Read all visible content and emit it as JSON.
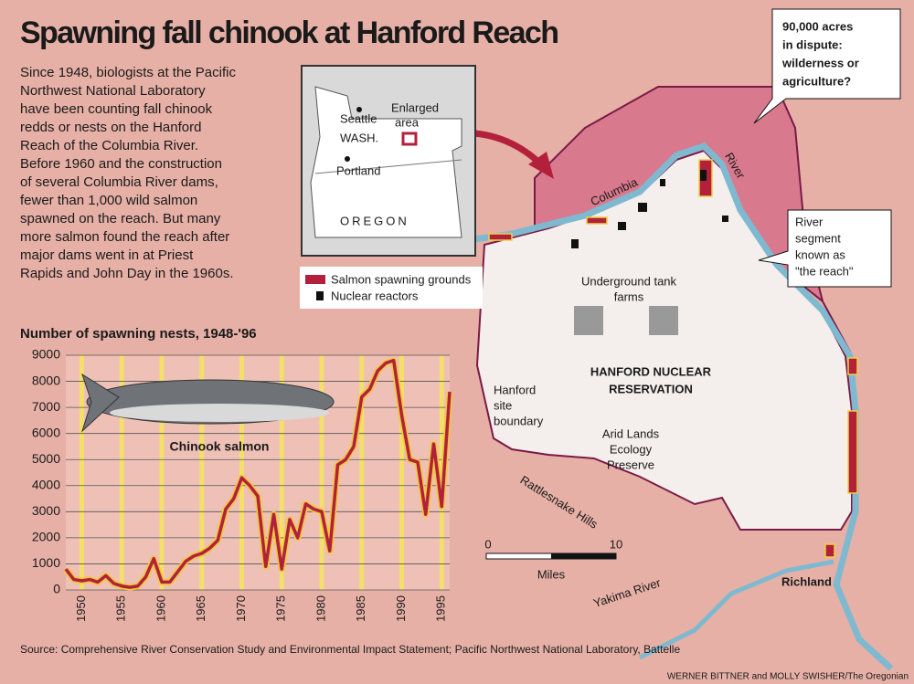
{
  "title": "Spawning fall chinook at Hanford Reach",
  "intro": [
    "Since 1948, biologists at the Pacific",
    "Northwest National Laboratory",
    "have been counting fall chinook",
    "redds or nests on the Hanford",
    "Reach of the Columbia River.",
    "Before 1960 and the construction",
    "of several Columbia River dams,",
    "fewer than 1,000 wild salmon",
    "spawned on the reach. But many",
    "more salmon found the reach after",
    "major dams went in at Priest",
    "Rapids and John Day in the 1960s."
  ],
  "chart_data": {
    "type": "line",
    "title": "Number of spawning nests, 1948-'96",
    "annotation": "Chinook salmon",
    "x": [
      1948,
      1949,
      1950,
      1951,
      1952,
      1953,
      1954,
      1955,
      1956,
      1957,
      1958,
      1959,
      1960,
      1961,
      1962,
      1963,
      1964,
      1965,
      1966,
      1967,
      1968,
      1969,
      1970,
      1971,
      1972,
      1973,
      1974,
      1975,
      1976,
      1977,
      1978,
      1979,
      1980,
      1981,
      1982,
      1983,
      1984,
      1985,
      1986,
      1987,
      1988,
      1989,
      1990,
      1991,
      1992,
      1993,
      1994,
      1995,
      1996
    ],
    "values": [
      800,
      400,
      350,
      400,
      300,
      550,
      250,
      150,
      100,
      150,
      500,
      1200,
      300,
      300,
      700,
      1100,
      1300,
      1400,
      1600,
      1900,
      3100,
      3500,
      4300,
      4000,
      3600,
      900,
      2900,
      800,
      2700,
      2000,
      3300,
      3100,
      3000,
      1500,
      4800,
      5000,
      5500,
      7400,
      7700,
      8400,
      8700,
      8800,
      6700,
      5000,
      4900,
      2900,
      5600,
      3200,
      7600
    ],
    "color": "#b3203c",
    "xlim": [
      1948,
      1996
    ],
    "xticks": [
      1950,
      1955,
      1960,
      1965,
      1970,
      1975,
      1980,
      1985,
      1990,
      1995
    ],
    "ylim": [
      0,
      9000
    ],
    "yticks": [
      0,
      1000,
      2000,
      3000,
      4000,
      5000,
      6000,
      7000,
      8000,
      9000
    ],
    "grid": true
  },
  "map": {
    "seattle": "Seattle",
    "enlarged": [
      "Enlarged",
      "area"
    ],
    "wash": "WASH.",
    "portland": "Portland",
    "oregon": "OREGON",
    "legend": [
      "Salmon spawning grounds",
      "Nuclear reactors"
    ],
    "columbia": "Columbia",
    "river": "River",
    "dispute": [
      "90,000 acres",
      "in dispute:",
      "wilderness or",
      "agriculture?"
    ],
    "reach": [
      "River",
      "segment",
      "known as",
      "\"the reach\""
    ],
    "tanks": [
      "Underground tank",
      "farms"
    ],
    "reservation": [
      "HANFORD NUCLEAR",
      "RESERVATION"
    ],
    "boundary": [
      "Hanford",
      "site",
      "boundary"
    ],
    "preserve": [
      "Arid Lands",
      "Ecology",
      "Preserve"
    ],
    "hills": "Rattlesnake Hills",
    "scale": [
      "0",
      "10",
      "Miles"
    ],
    "richland": "Richland",
    "yakima": "Yakima River"
  },
  "source": "Source: Comprehensive River Conservation Study and Environmental Impact Statement; Pacific Northwest National Laboratory, Battelle",
  "credit": "WERNER BITTNER and MOLLY SWISHER/The Oregonian"
}
